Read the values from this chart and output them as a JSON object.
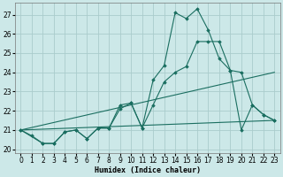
{
  "xlabel": "Humidex (Indice chaleur)",
  "bg_color": "#cce8e8",
  "grid_color": "#aacccc",
  "line_color": "#1a6e60",
  "xlim": [
    -0.5,
    23.5
  ],
  "ylim": [
    19.8,
    27.6
  ],
  "yticks": [
    20,
    21,
    22,
    23,
    24,
    25,
    26,
    27
  ],
  "xticks": [
    0,
    1,
    2,
    3,
    4,
    5,
    6,
    7,
    8,
    9,
    10,
    11,
    12,
    13,
    14,
    15,
    16,
    17,
    18,
    19,
    20,
    21,
    22,
    23
  ],
  "line1_x": [
    0,
    1,
    2,
    3,
    4,
    5,
    6,
    7,
    8,
    9,
    10,
    11,
    12,
    13,
    14,
    15,
    16,
    17,
    18,
    19,
    20,
    21,
    22,
    23
  ],
  "line1_y": [
    21.0,
    20.7,
    20.3,
    20.3,
    20.9,
    21.0,
    20.55,
    21.1,
    21.1,
    22.3,
    22.4,
    21.1,
    23.6,
    24.35,
    27.1,
    26.8,
    27.3,
    26.2,
    24.7,
    24.1,
    21.0,
    22.3,
    21.8,
    21.5
  ],
  "line2_x": [
    0,
    2,
    3,
    4,
    5,
    6,
    7,
    8,
    9,
    10,
    11,
    12,
    13,
    14,
    15,
    16,
    17,
    18,
    19,
    20,
    21,
    22,
    23
  ],
  "line2_y": [
    21.0,
    20.3,
    20.3,
    20.9,
    21.0,
    20.55,
    21.1,
    21.1,
    22.1,
    22.4,
    21.1,
    22.3,
    23.5,
    24.0,
    24.3,
    25.6,
    25.6,
    25.6,
    24.1,
    24.0,
    22.3,
    21.8,
    21.5
  ],
  "line3_x": [
    0,
    23
  ],
  "line3_y": [
    21.0,
    21.5
  ],
  "line4_x": [
    0,
    23
  ],
  "line4_y": [
    21.0,
    24.0
  ]
}
